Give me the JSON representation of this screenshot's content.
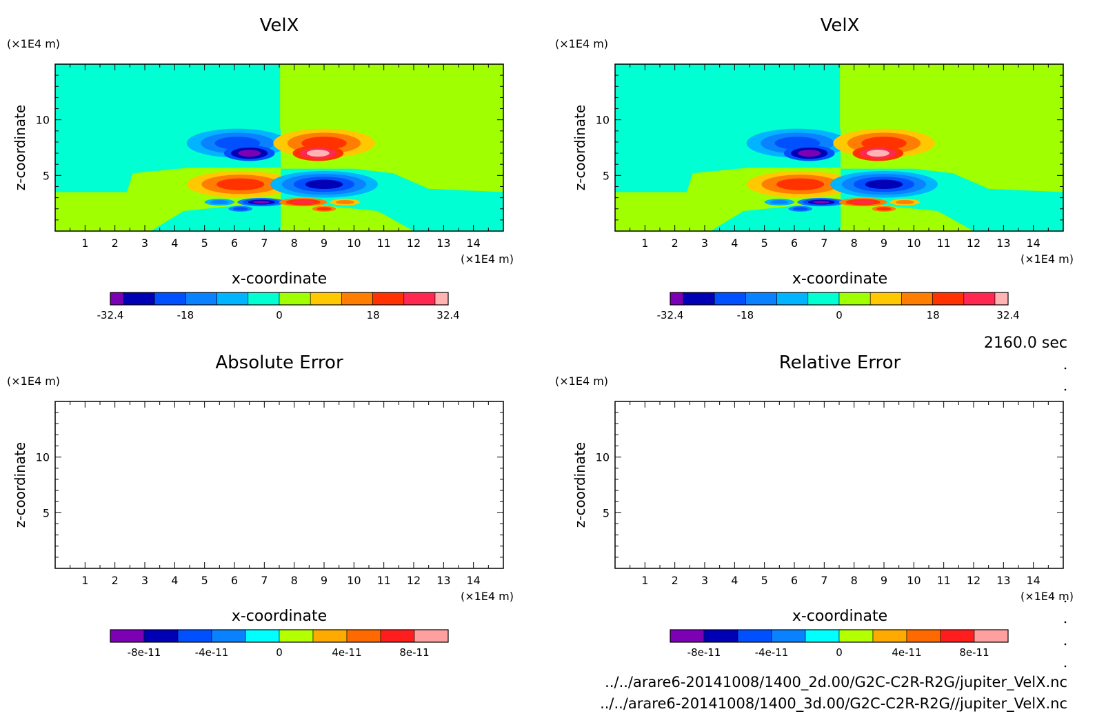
{
  "footer": {
    "time": "2160.0 sec",
    "file1": "../../arare6-20141008/1400_2d.00/G2C-C2R-R2G/jupiter_VelX.nc",
    "file2": "../../arare6-20141008/1400_3d.00/G2C-C2R-R2G//jupiter_VelX.nc"
  },
  "colors": {
    "velx_levels": [
      "#7c00b4",
      "#0000b4",
      "#0050ff",
      "#0a82ff",
      "#00b4ff",
      "#00ffd2",
      "#a0ff00",
      "#ffc800",
      "#ff7d00",
      "#ff3200",
      "#ff2850",
      "#ffb4b4"
    ],
    "error_levels": [
      "#7c00b4",
      "#0000b4",
      "#0050ff",
      "#0a82ff",
      "#00ffff",
      "#b4ff00",
      "#ffaa00",
      "#ff6a00",
      "#ff1e1e",
      "#ffa0a0"
    ]
  },
  "chart_data": [
    {
      "type": "heatmap",
      "title": "VelX",
      "xlabel": "x-coordinate",
      "ylabel": "z-coordinate",
      "x_unit": "(×1E4 m)",
      "y_unit": "(×1E4 m)",
      "xlim": [
        0,
        15
      ],
      "ylim": [
        0,
        15
      ],
      "x_ticks": [
        1,
        2,
        3,
        4,
        5,
        6,
        7,
        8,
        9,
        10,
        11,
        12,
        13,
        14
      ],
      "y_ticks": [
        5,
        10
      ],
      "colorbar": {
        "min": -32.4,
        "max": 32.4,
        "tick_labels": [
          "-32.4",
          "-18",
          "0",
          "18",
          "32.4"
        ],
        "n_levels": 12
      },
      "background": {
        "x_lt_7.5": 0,
        "x_gt_7.5": 1
      },
      "features": [
        {
          "sign": "negative",
          "center_x": 6.5,
          "center_z": 7.0,
          "peak": -32.4
        },
        {
          "sign": "positive",
          "center_x": 8.8,
          "center_z": 7.0,
          "peak": 32.4
        },
        {
          "sign": "positive",
          "center_x": 6.3,
          "center_z": 4.3,
          "peak": 24
        },
        {
          "sign": "negative",
          "center_x": 8.8,
          "center_z": 4.3,
          "peak": -24
        },
        {
          "sign": "negative",
          "center_x": 6.8,
          "center_z": 2.6,
          "peak": -28
        },
        {
          "sign": "positive",
          "center_x": 8.3,
          "center_z": 2.6,
          "peak": 28
        }
      ]
    },
    {
      "type": "heatmap",
      "title": "VelX",
      "xlabel": "x-coordinate",
      "ylabel": "z-coordinate",
      "x_unit": "(×1E4 m)",
      "y_unit": "(×1E4 m)",
      "xlim": [
        0,
        15
      ],
      "ylim": [
        0,
        15
      ],
      "x_ticks": [
        1,
        2,
        3,
        4,
        5,
        6,
        7,
        8,
        9,
        10,
        11,
        12,
        13,
        14
      ],
      "y_ticks": [
        5,
        10
      ],
      "colorbar": {
        "min": -32.4,
        "max": 32.4,
        "tick_labels": [
          "-32.4",
          "-18",
          "0",
          "18",
          "32.4"
        ],
        "n_levels": 12
      }
    },
    {
      "type": "heatmap",
      "title": "Absolute Error",
      "xlabel": "x-coordinate",
      "ylabel": "z-coordinate",
      "x_unit": "(×1E4 m)",
      "y_unit": "(×1E4 m)",
      "xlim": [
        0,
        15
      ],
      "ylim": [
        0,
        15
      ],
      "x_ticks": [
        1,
        2,
        3,
        4,
        5,
        6,
        7,
        8,
        9,
        10,
        11,
        12,
        13,
        14
      ],
      "y_ticks": [
        5,
        10
      ],
      "colorbar": {
        "min": -1e-10,
        "max": 1e-10,
        "tick_labels": [
          "-8e-11",
          "-4e-11",
          "0",
          "4e-11",
          "8e-11"
        ],
        "n_levels": 10
      },
      "values": "all zero (blank field)"
    },
    {
      "type": "heatmap",
      "title": "Relative Error",
      "xlabel": "x-coordinate",
      "ylabel": "z-coordinate",
      "x_unit": "(×1E4 m)",
      "y_unit": "(×1E4 m)",
      "xlim": [
        0,
        15
      ],
      "ylim": [
        0,
        15
      ],
      "x_ticks": [
        1,
        2,
        3,
        4,
        5,
        6,
        7,
        8,
        9,
        10,
        11,
        12,
        13,
        14
      ],
      "y_ticks": [
        5,
        10
      ],
      "colorbar": {
        "min": -1e-10,
        "max": 1e-10,
        "tick_labels": [
          "-8e-11",
          "-4e-11",
          "0",
          "4e-11",
          "8e-11"
        ],
        "n_levels": 10
      },
      "values": "all zero (blank field)"
    }
  ]
}
